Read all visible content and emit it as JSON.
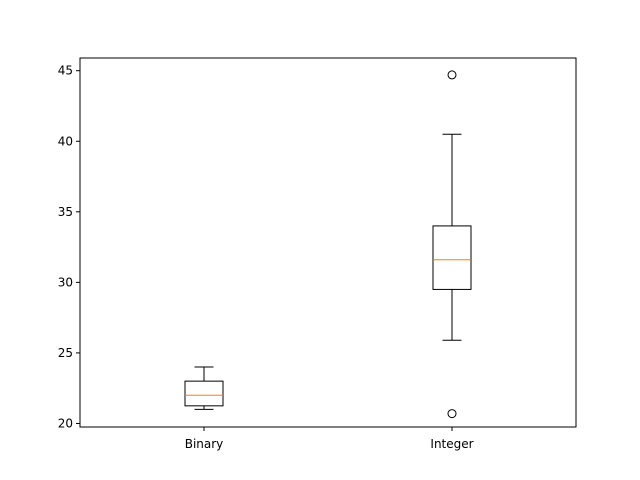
{
  "chart_data": {
    "type": "boxplot",
    "title": "",
    "xlabel": "",
    "ylabel": "",
    "categories": [
      "Binary",
      "Integer"
    ],
    "ylim": [
      19.75,
      45.9
    ],
    "yticks": [
      20,
      25,
      30,
      35,
      40,
      45
    ],
    "grid": false,
    "boxes": [
      {
        "name": "Binary",
        "whisker_low": 21.0,
        "q1": 21.25,
        "median": 22.0,
        "q3": 23.0,
        "whisker_high": 24.0,
        "outliers": []
      },
      {
        "name": "Integer",
        "whisker_low": 25.9,
        "q1": 29.5,
        "median": 31.6,
        "q3": 34.0,
        "whisker_high": 40.5,
        "outliers": [
          44.7,
          20.7
        ]
      }
    ],
    "colors": {
      "box": "#000000",
      "median": "#ff7f0e",
      "whisker": "#000000",
      "flier": "#000000"
    }
  }
}
